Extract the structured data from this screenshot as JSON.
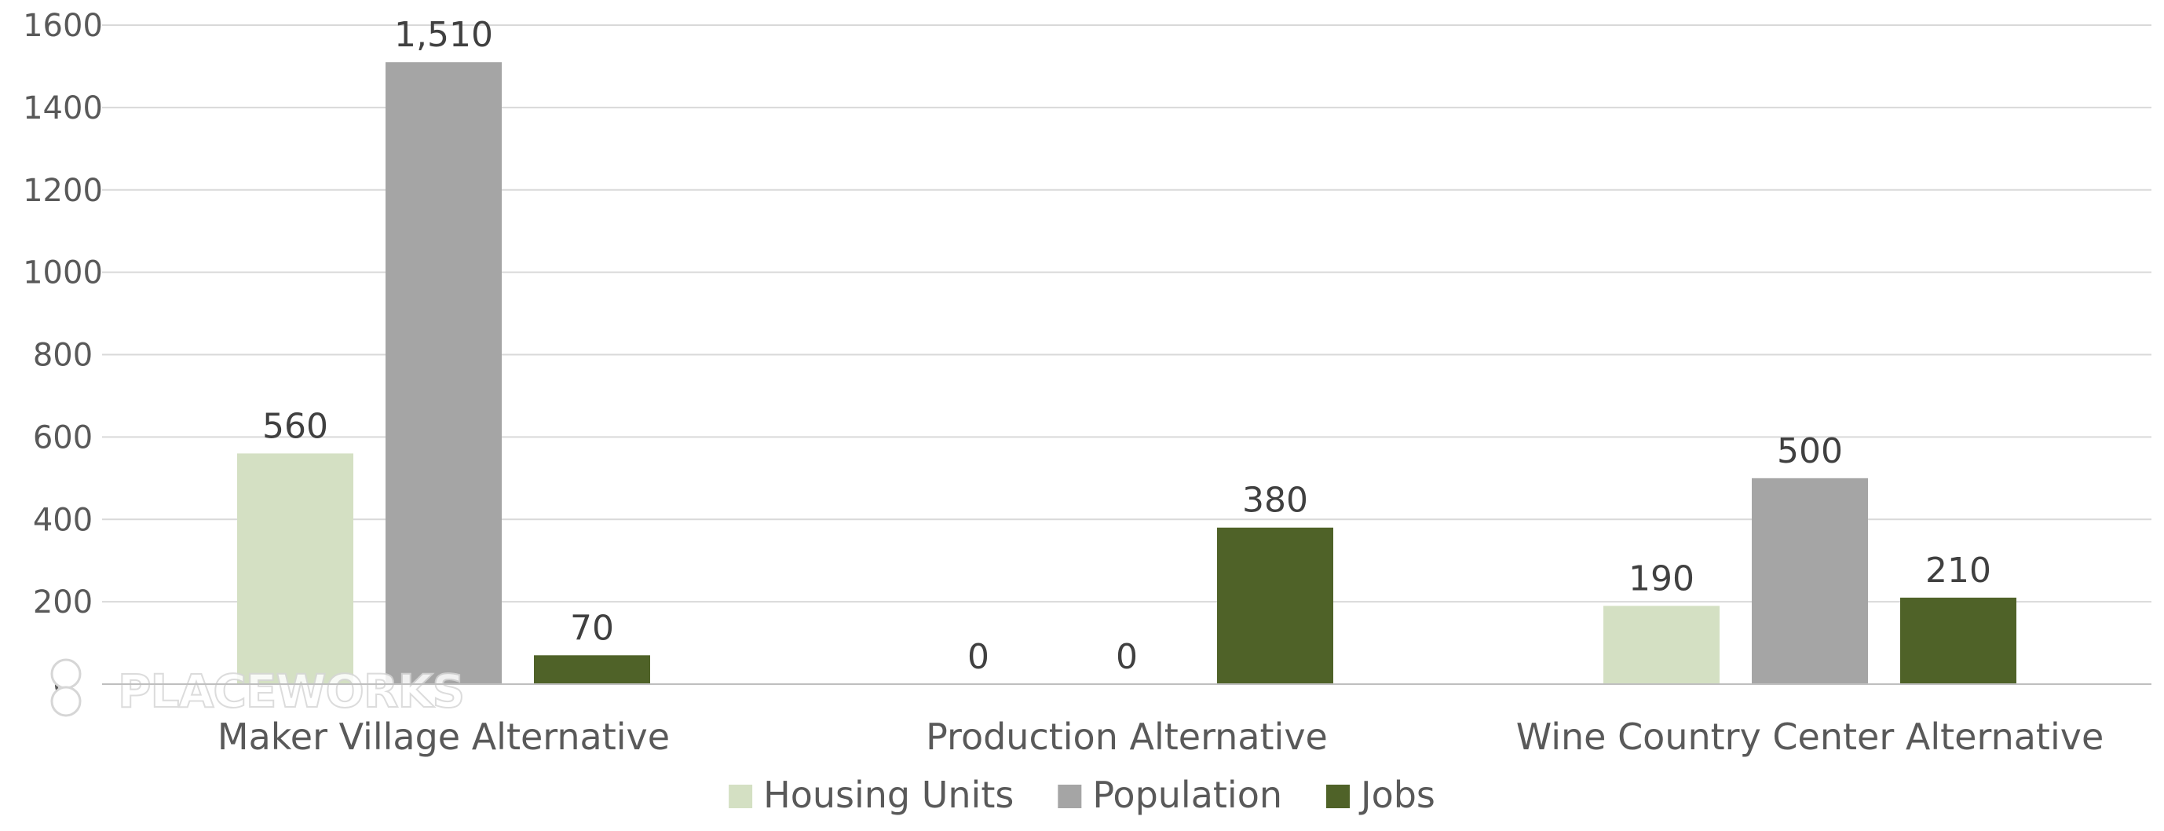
{
  "chart_data": {
    "type": "bar",
    "title": "",
    "xlabel": "",
    "ylabel": "",
    "categories": [
      "Maker Village Alternative",
      "Production Alternative",
      "Wine Country Center Alternative"
    ],
    "series": [
      {
        "name": "Housing Units",
        "color": "#d4e0c3",
        "values": [
          560,
          0,
          190
        ],
        "labels": [
          "560",
          "0",
          "190"
        ]
      },
      {
        "name": "Population",
        "color": "#a5a5a5",
        "values": [
          1510,
          0,
          500
        ],
        "labels": [
          "1,510",
          "0",
          "500"
        ]
      },
      {
        "name": "Jobs",
        "color": "#4f6228",
        "values": [
          70,
          380,
          210
        ],
        "labels": [
          "70",
          "380",
          "210"
        ]
      }
    ],
    "ylim": [
      0,
      1600
    ],
    "yticks": [
      0,
      200,
      400,
      600,
      800,
      1000,
      1200,
      1400,
      1600
    ],
    "grid": true,
    "legend_position": "bottom"
  },
  "watermark": {
    "text": "PLACEWORKS",
    "icon": "placeworks-logo-icon"
  },
  "colors": {
    "gridline": "#d9d9d9",
    "axis": "#bfbfbf",
    "text": "#595959"
  }
}
